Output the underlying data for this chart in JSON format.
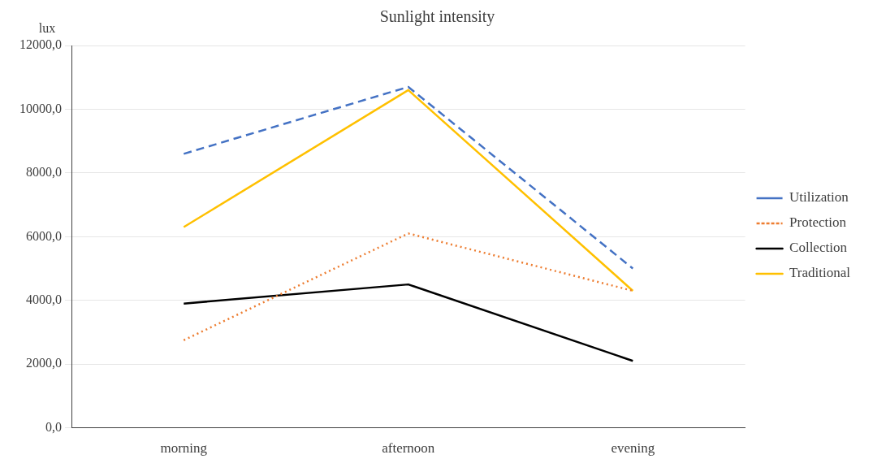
{
  "chart_data": {
    "type": "line",
    "title": "Sunlight intensity",
    "ylabel": "lux",
    "categories": [
      "morning",
      "afternoon",
      "evening"
    ],
    "series": [
      {
        "name": "Utilization",
        "color": "#4472c4",
        "line_style": "dashed",
        "values": [
          8600,
          10700,
          5000
        ]
      },
      {
        "name": "Protection",
        "color": "#ed7d31",
        "line_style": "dotted",
        "values": [
          2750,
          6100,
          4300
        ]
      },
      {
        "name": "Collection",
        "color": "#000000",
        "line_style": "solid",
        "values": [
          3900,
          4500,
          2100
        ]
      },
      {
        "name": "Traditional",
        "color": "#ffc000",
        "line_style": "solid",
        "values": [
          6300,
          10600,
          4300
        ]
      }
    ],
    "ylim": [
      0,
      12000
    ],
    "yticks": [
      {
        "value": 0,
        "label": "0,0"
      },
      {
        "value": 2000,
        "label": "2000,0"
      },
      {
        "value": 4000,
        "label": "4000,0"
      },
      {
        "value": 6000,
        "label": "6000,0"
      },
      {
        "value": 8000,
        "label": "8000,0"
      },
      {
        "value": 10000,
        "label": "10000,0"
      },
      {
        "value": 12000,
        "label": "12000,0"
      }
    ],
    "grid": "y",
    "legend": "right",
    "marker": "none"
  }
}
